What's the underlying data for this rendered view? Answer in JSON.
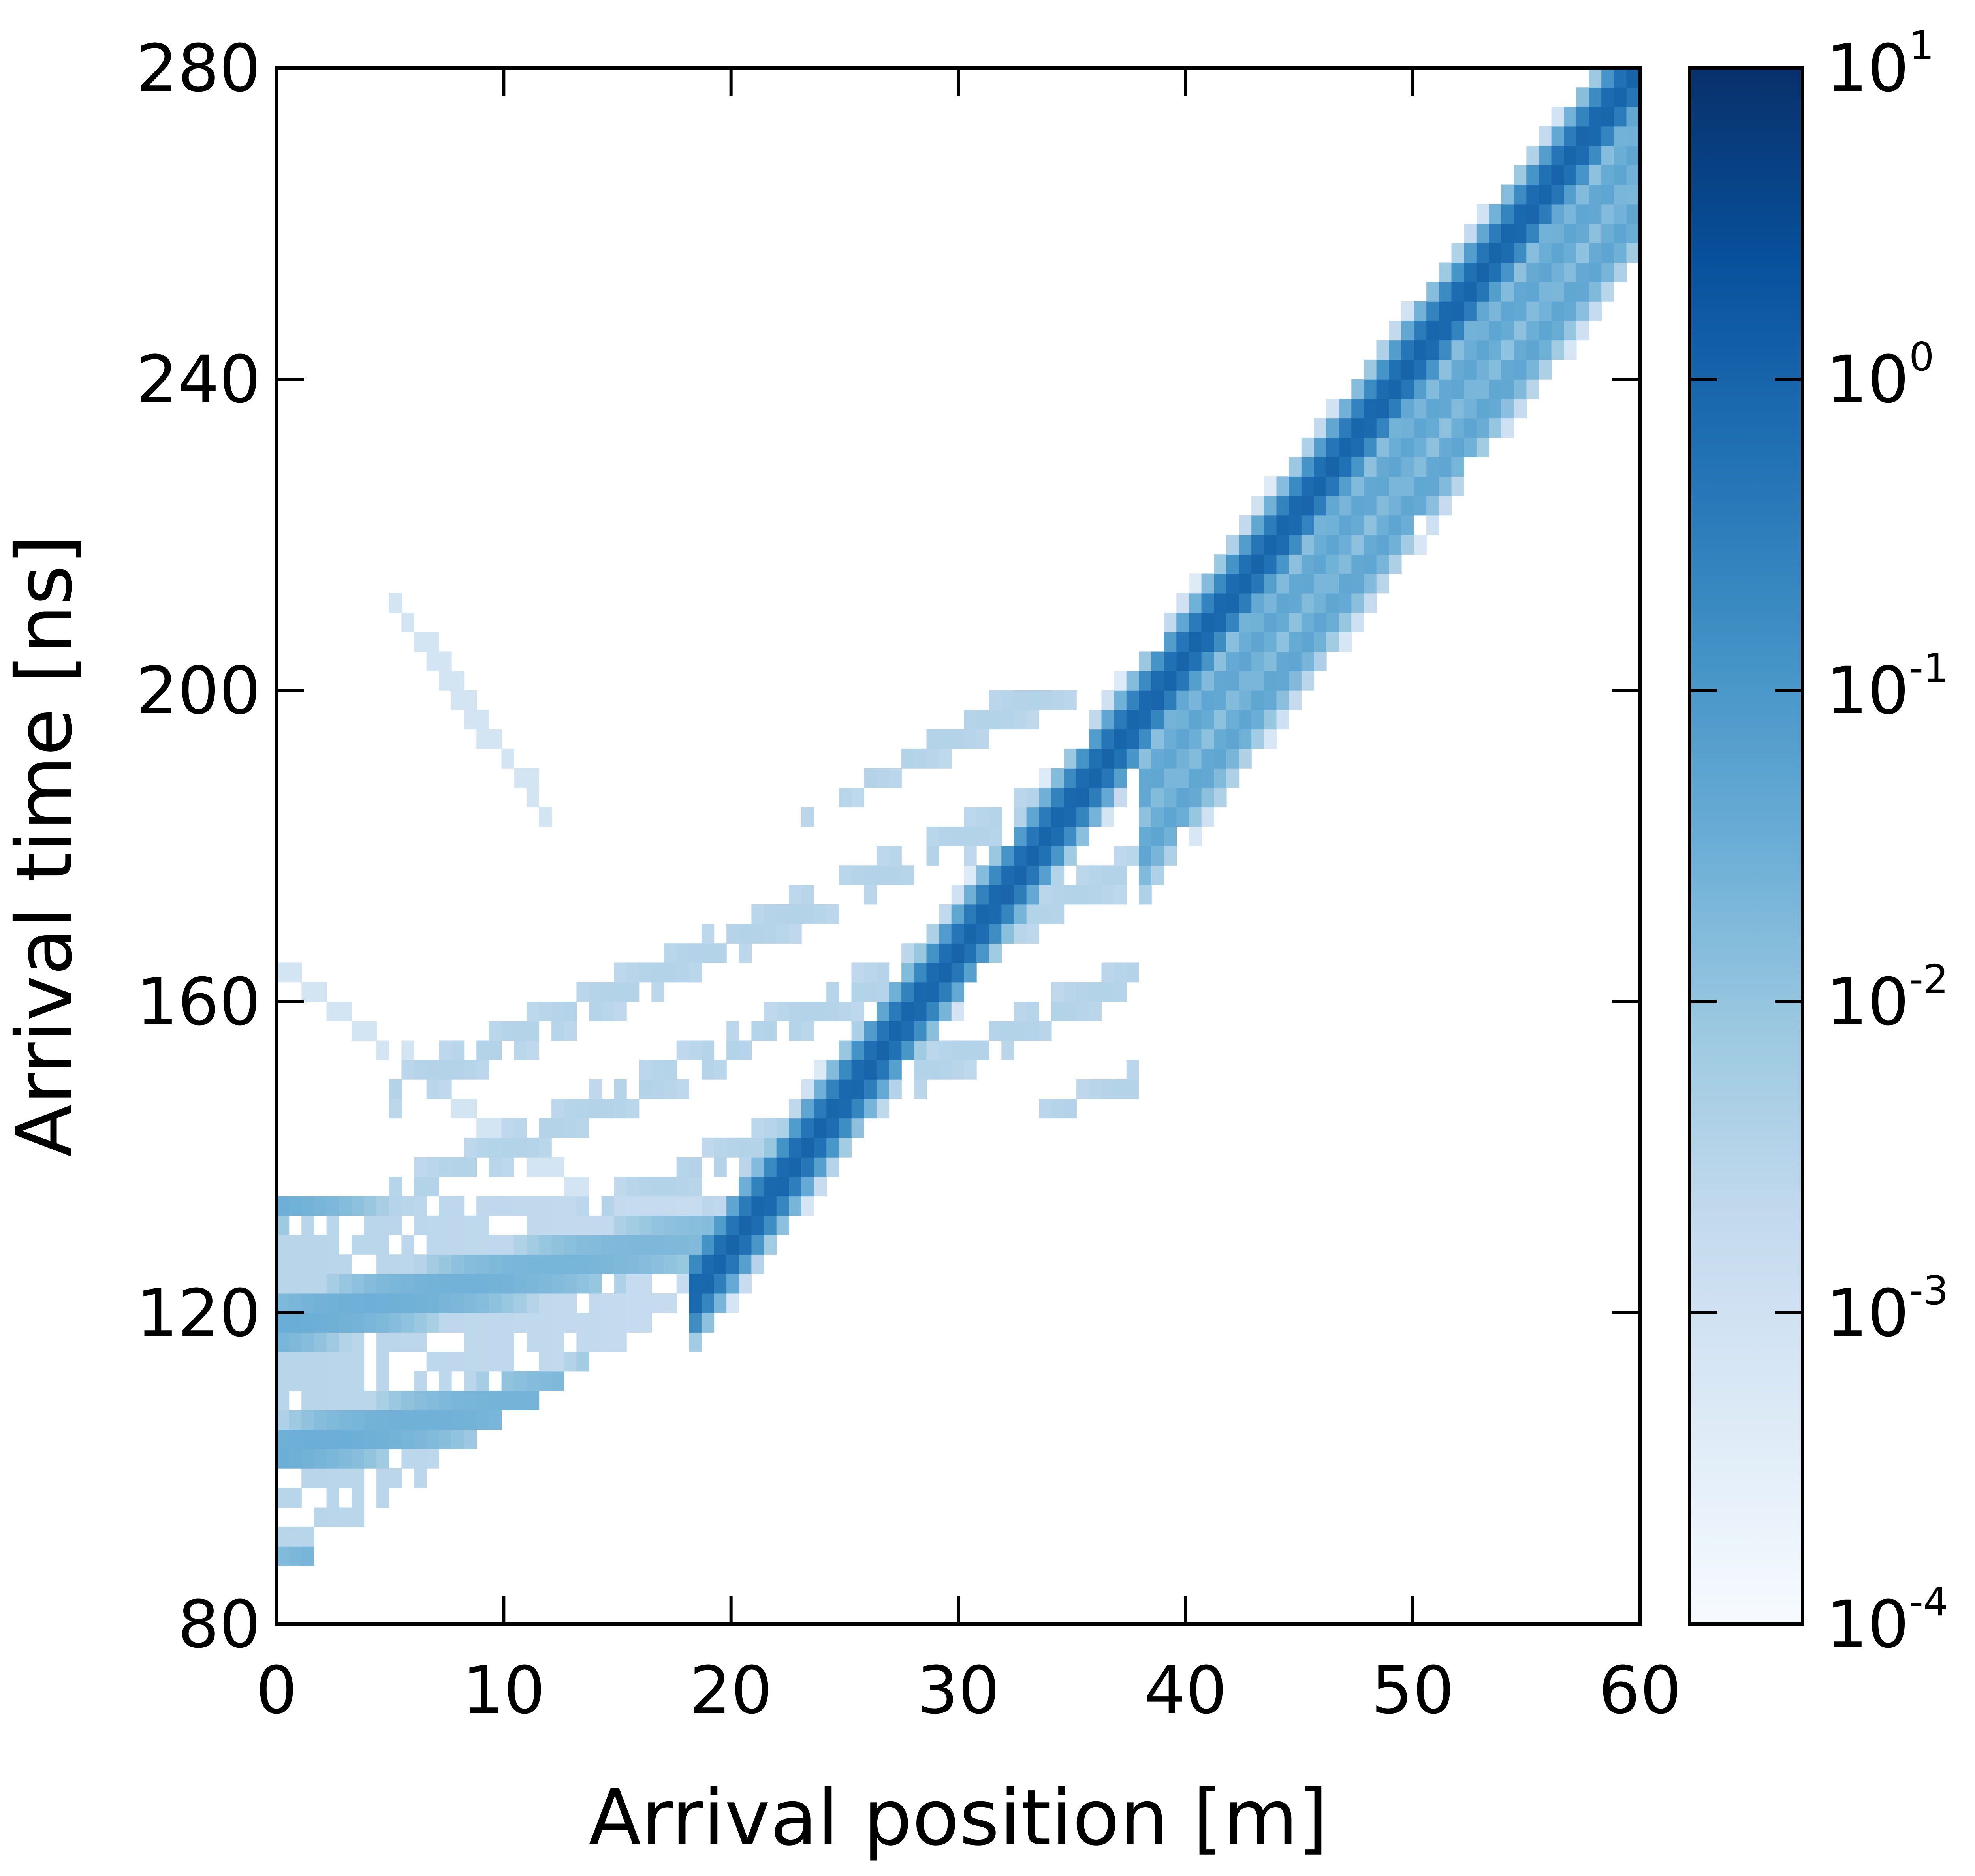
{
  "chart_data": {
    "type": "heatmap",
    "title": "",
    "xlabel": "Arrival position  [m]",
    "ylabel": "Arrival time  [ns]",
    "xlim": [
      0,
      60
    ],
    "ylim": [
      80,
      280
    ],
    "x_ticks": [
      "0",
      "10",
      "20",
      "30",
      "40",
      "50",
      "60"
    ],
    "y_ticks": [
      "80",
      "120",
      "160",
      "200",
      "240",
      "280"
    ],
    "grid": false,
    "colormap": "Blues",
    "colorbar": {
      "scale": "log",
      "range": [
        0.0001,
        10
      ],
      "tick_base": "10",
      "tick_exponents": [
        "-4",
        "-3",
        "-2",
        "-1",
        "0",
        "1"
      ]
    },
    "features": [
      {
        "description": "main direct-arrival ridge",
        "x_start": 18,
        "x_end": 60,
        "t_start": 121,
        "t_end": 280,
        "level": 1.0
      },
      {
        "description": "reflection bands behind ridge",
        "x_start": 38,
        "x_end": 60,
        "t_offsets_ns": [
          0,
          -10,
          -18
        ],
        "level": 0.05
      },
      {
        "description": "dense scattered region near source",
        "x_range": [
          0,
          18
        ],
        "t_range": [
          85,
          135
        ],
        "level": 0.02
      },
      {
        "description": "faint side branches",
        "x_range": [
          5,
          40
        ],
        "t_range": [
          130,
          215
        ],
        "level": 0.002
      }
    ],
    "colors": {
      "low": "#f7fbff",
      "mid": "#6baed6",
      "high": "#08306b"
    }
  }
}
